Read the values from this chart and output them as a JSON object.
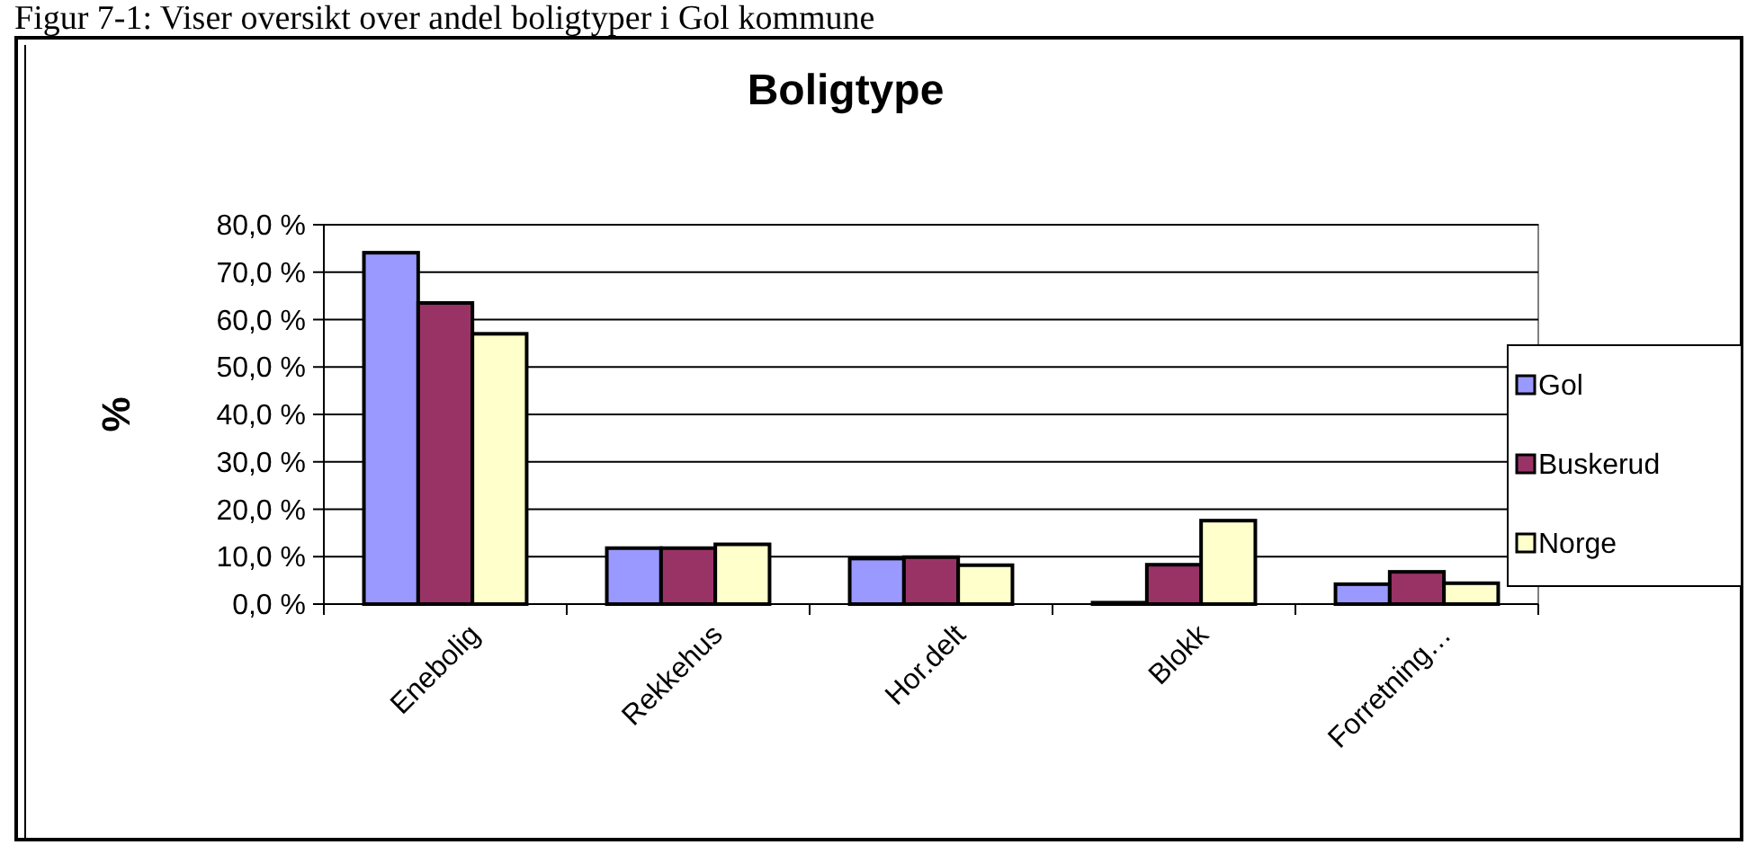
{
  "chart_data": {
    "type": "bar",
    "title": "Boligtype",
    "ylabel": "%",
    "annotations": [
      "Figur 7-1: Viser oversikt over andel boligtyper i Gol kommune"
    ],
    "categories": [
      "Enebolig",
      "Rekkehus",
      "Hor.delt",
      "Blokk",
      "Forretning…"
    ],
    "series": [
      {
        "name": "Gol",
        "color": "#9999ff",
        "values": [
          74.1,
          11.8,
          9.6,
          0.3,
          4.2
        ]
      },
      {
        "name": "Buskerud",
        "color": "#993366",
        "values": [
          63.5,
          11.8,
          9.9,
          8.3,
          6.8
        ]
      },
      {
        "name": "Norge",
        "color": "#ffffcc",
        "values": [
          57.0,
          12.6,
          8.2,
          17.6,
          4.4
        ]
      }
    ],
    "ylim": [
      0,
      80
    ],
    "yticks": [
      {
        "value": 0,
        "label": "0,0 %"
      },
      {
        "value": 10,
        "label": "10,0 %"
      },
      {
        "value": 20,
        "label": "20,0 %"
      },
      {
        "value": 30,
        "label": "30,0 %"
      },
      {
        "value": 40,
        "label": "40,0 %"
      },
      {
        "value": 50,
        "label": "50,0 %"
      },
      {
        "value": 60,
        "label": "60,0 %"
      },
      {
        "value": 70,
        "label": "70,0 %"
      },
      {
        "value": 80,
        "label": "80,0 %"
      }
    ],
    "grid": "y",
    "legend": "right"
  }
}
